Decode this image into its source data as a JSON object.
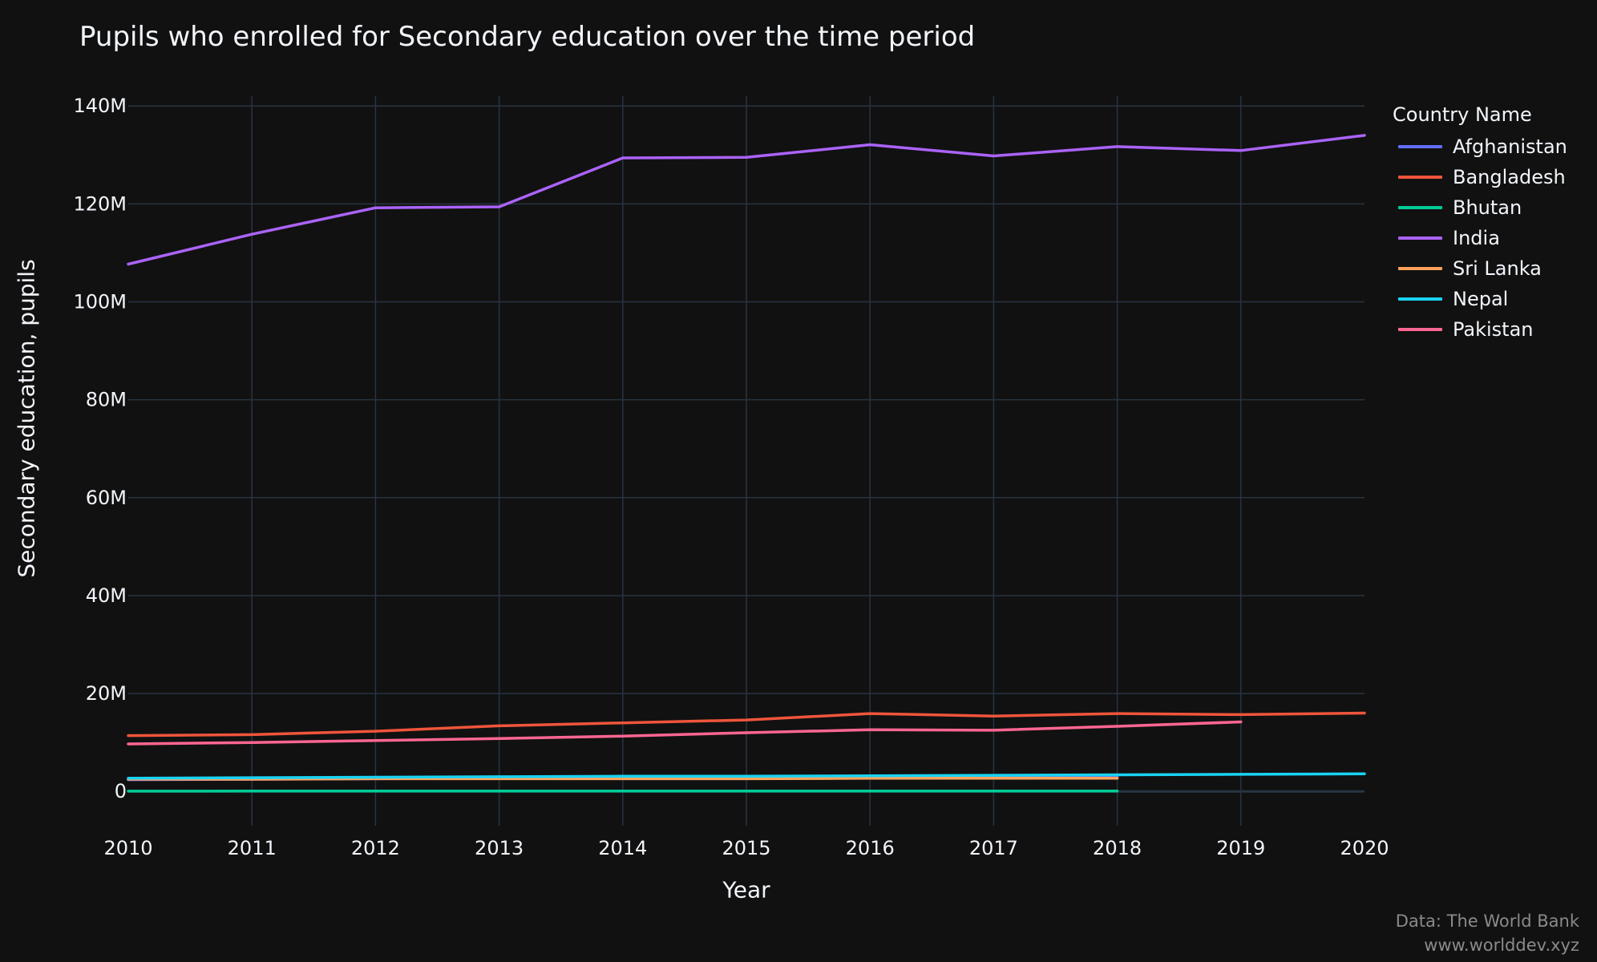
{
  "chart_data": {
    "type": "line",
    "title": "Pupils who enrolled for Secondary education over the time period",
    "xlabel": "Year",
    "ylabel": "Secondary education, pupils",
    "x": [
      2010,
      2011,
      2012,
      2013,
      2014,
      2015,
      2016,
      2017,
      2018,
      2019,
      2020
    ],
    "xlim": [
      2010,
      2020
    ],
    "ylim": [
      -7000000,
      142000000
    ],
    "yticks": [
      0,
      20000000,
      40000000,
      60000000,
      80000000,
      100000000,
      120000000,
      140000000
    ],
    "ytick_labels": [
      "0",
      "20M",
      "40M",
      "60M",
      "80M",
      "100M",
      "120M",
      "140M"
    ],
    "xtick_labels": [
      "2010",
      "2011",
      "2012",
      "2013",
      "2014",
      "2015",
      "2016",
      "2017",
      "2018",
      "2019",
      "2020"
    ],
    "grid": true,
    "legend_title": "Country Name",
    "legend_position": "top-right",
    "series": [
      {
        "name": "Afghanistan",
        "color": "#636efa",
        "values": [
          2400000,
          2500000,
          2600000,
          2700000,
          2800000,
          2800000,
          2900000,
          2900000,
          3000000,
          null,
          null
        ]
      },
      {
        "name": "Bangladesh",
        "color": "#EF553B",
        "values": [
          11400000,
          11600000,
          12300000,
          13400000,
          14000000,
          14600000,
          15900000,
          15400000,
          15900000,
          15700000,
          16000000
        ]
      },
      {
        "name": "Bhutan",
        "color": "#00cc96",
        "values": [
          64000,
          68000,
          70000,
          71000,
          73000,
          73000,
          73000,
          72000,
          71000,
          null,
          null
        ]
      },
      {
        "name": "India",
        "color": "#ab63fa",
        "values": [
          107700000,
          113800000,
          119200000,
          119400000,
          129400000,
          129500000,
          132100000,
          129800000,
          131700000,
          130900000,
          134000000
        ]
      },
      {
        "name": "Sri Lanka",
        "color": "#FFA15A",
        "values": [
          2500000,
          2500000,
          2600000,
          2600000,
          2600000,
          2600000,
          2700000,
          2700000,
          2700000,
          null,
          null
        ]
      },
      {
        "name": "Nepal",
        "color": "#19d3f3",
        "values": [
          2700000,
          2800000,
          2900000,
          3000000,
          3100000,
          3100000,
          3200000,
          3300000,
          3400000,
          3500000,
          3600000
        ]
      },
      {
        "name": "Pakistan",
        "color": "#FF6692",
        "values": [
          9700000,
          10000000,
          10400000,
          10800000,
          11300000,
          12000000,
          12600000,
          12500000,
          13300000,
          14200000,
          null
        ]
      }
    ]
  },
  "source": {
    "line1": "Data: The World Bank",
    "line2": "www.worlddev.xyz"
  }
}
